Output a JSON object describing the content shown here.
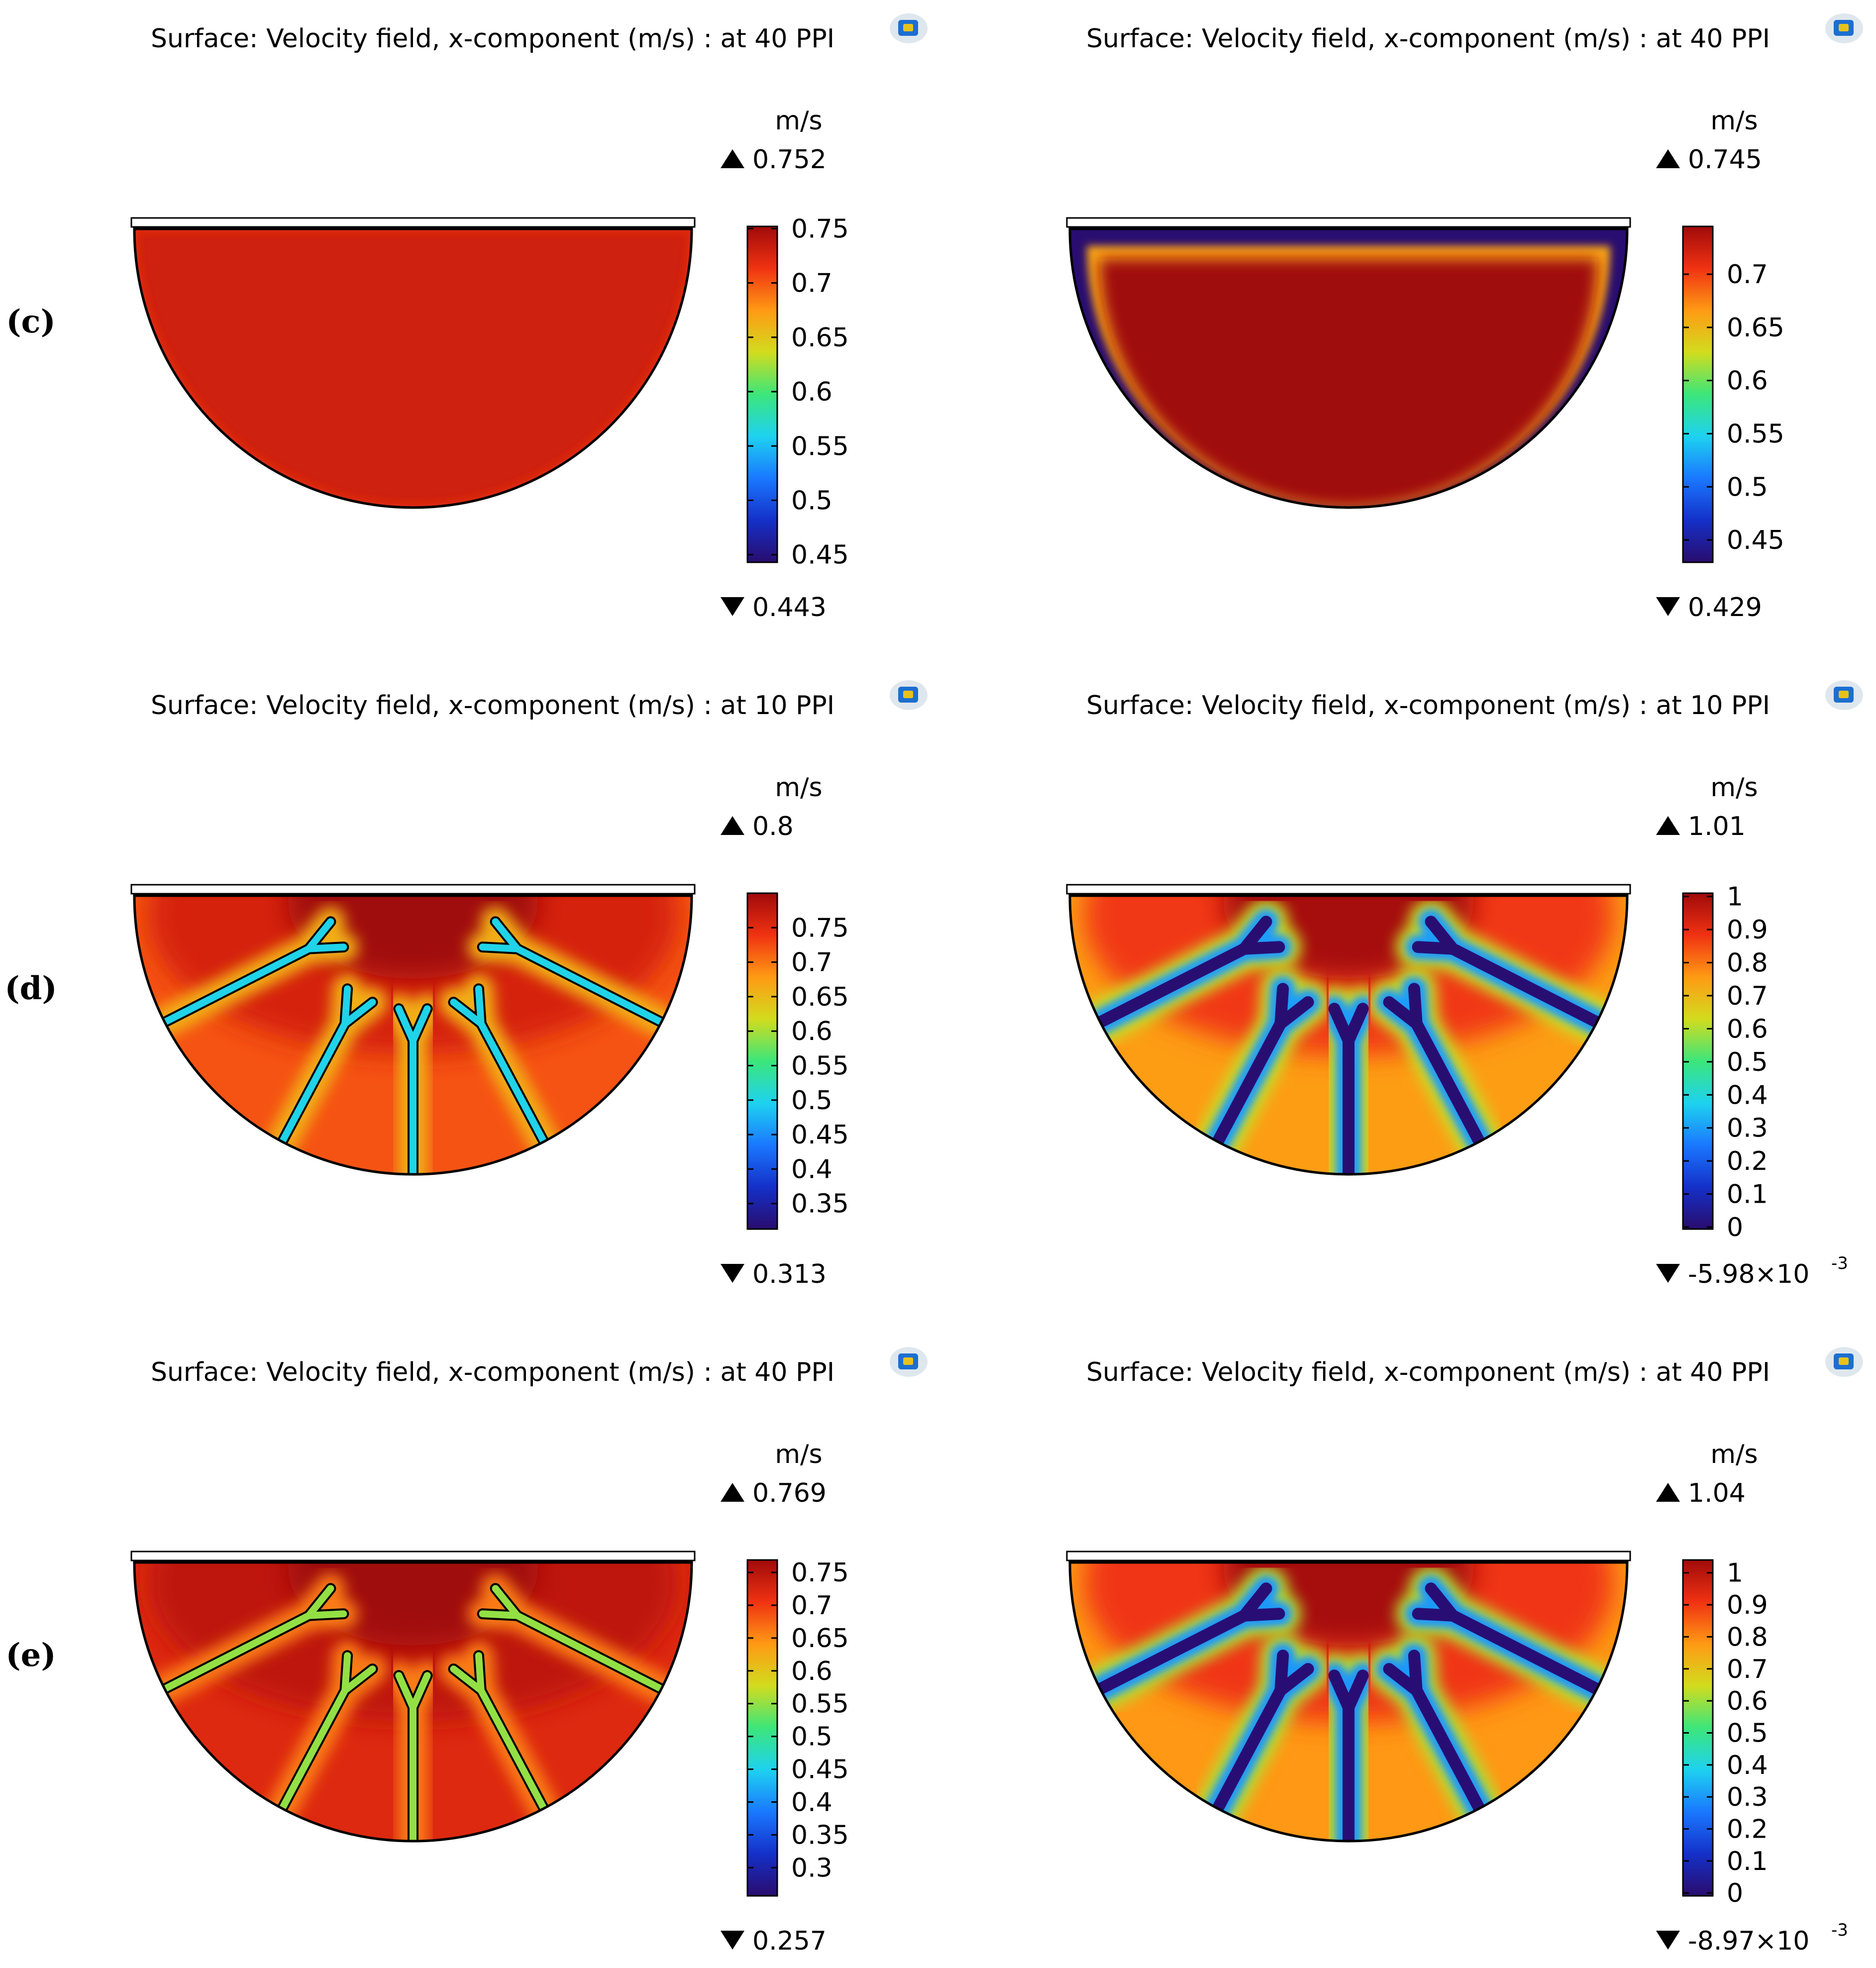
{
  "rows": [
    {
      "label": "(c)",
      "panels": [
        {
          "title": "Surface: Velocity field, x-component (m/s) : at 40 PPI",
          "unit": "m/s",
          "max_label": "0.752",
          "min_label": "0.443",
          "colorbar": {
            "range": [
              0.443,
              0.752
            ],
            "ticks": [
              "0.45",
              "0.5",
              "0.55",
              "0.6",
              "0.65",
              "0.7",
              "0.75"
            ]
          },
          "field": {
            "style": "uniform",
            "value": 0.73,
            "boundary": 0.72,
            "vmin": 0.443,
            "vmax": 0.752,
            "channels": false
          }
        },
        {
          "title": "Surface: Velocity field, x-component (m/s) : at 40 PPI",
          "unit": "m/s",
          "max_label": "0.745",
          "min_label": "0.429",
          "colorbar": {
            "range": [
              0.429,
              0.745
            ],
            "ticks": [
              "0.45",
              "0.5",
              "0.55",
              "0.6",
              "0.65",
              "0.7"
            ]
          },
          "field": {
            "style": "boundary-layer",
            "value": 0.745,
            "boundary": 0.43,
            "vmin": 0.429,
            "vmax": 0.745,
            "channels": false
          }
        }
      ]
    },
    {
      "label": "(d)",
      "panels": [
        {
          "title": "Surface: Velocity field, x-component (m/s) : at 10 PPI",
          "unit": "m/s",
          "max_label": "0.8",
          "min_label": "0.313",
          "colorbar": {
            "range": [
              0.313,
              0.8
            ],
            "ticks": [
              "0.35",
              "0.4",
              "0.45",
              "0.5",
              "0.55",
              "0.6",
              "0.65",
              "0.7",
              "0.75"
            ]
          },
          "field": {
            "style": "channels-thin",
            "value": 0.8,
            "outer": 0.72,
            "channel": 0.5,
            "vmin": 0.313,
            "vmax": 0.8,
            "channels": true
          }
        },
        {
          "title": "Surface: Velocity field, x-component (m/s) : at 10 PPI",
          "unit": "m/s",
          "max_label": "1.01",
          "min_label": "-5.98×10",
          "min_exp": "-3",
          "colorbar": {
            "range": [
              -0.00598,
              1.01
            ],
            "ticks": [
              "0",
              "0.1",
              "0.2",
              "0.3",
              "0.4",
              "0.5",
              "0.6",
              "0.7",
              "0.8",
              "0.9",
              "1"
            ]
          },
          "field": {
            "style": "channels-wide",
            "value": 1.0,
            "outer": 0.75,
            "channel": 0.0,
            "vmin": -0.00598,
            "vmax": 1.01,
            "channels": true
          }
        }
      ]
    },
    {
      "label": "(e)",
      "panels": [
        {
          "title": "Surface: Velocity field, x-component (m/s) : at 40 PPI",
          "unit": "m/s",
          "max_label": "0.769",
          "min_label": "0.257",
          "colorbar": {
            "range": [
              0.257,
              0.769
            ],
            "ticks": [
              "0.3",
              "0.35",
              "0.4",
              "0.45",
              "0.5",
              "0.55",
              "0.6",
              "0.65",
              "0.7",
              "0.75"
            ]
          },
          "field": {
            "style": "channels-thin",
            "value": 0.77,
            "outer": 0.72,
            "channel": 0.55,
            "vmin": 0.257,
            "vmax": 0.769,
            "channels": true
          }
        },
        {
          "title": "Surface: Velocity field, x-component (m/s) : at 40 PPI",
          "unit": "m/s",
          "max_label": "1.04",
          "min_label": "-8.97×10",
          "min_exp": "-3",
          "colorbar": {
            "range": [
              -0.00897,
              1.04
            ],
            "ticks": [
              "0",
              "0.1",
              "0.2",
              "0.3",
              "0.4",
              "0.5",
              "0.6",
              "0.7",
              "0.8",
              "0.9",
              "1"
            ]
          },
          "field": {
            "style": "channels-wide",
            "value": 1.03,
            "outer": 0.78,
            "channel": 0.0,
            "vmin": -0.00897,
            "vmax": 1.04,
            "channels": true
          }
        }
      ]
    }
  ],
  "chart_data": [
    {
      "type": "heatmap",
      "title": "Surface: Velocity field, x-component (m/s) : at 40 PPI",
      "row": "(c)",
      "unit": "m/s",
      "max": 0.752,
      "min": 0.443,
      "colorbar_ticks": [
        0.45,
        0.5,
        0.55,
        0.6,
        0.65,
        0.7,
        0.75
      ]
    },
    {
      "type": "heatmap",
      "title": "Surface: Velocity field, x-component (m/s) : at 40 PPI",
      "row": "(c)",
      "unit": "m/s",
      "max": 0.745,
      "min": 0.429,
      "colorbar_ticks": [
        0.45,
        0.5,
        0.55,
        0.6,
        0.65,
        0.7
      ]
    },
    {
      "type": "heatmap",
      "title": "Surface: Velocity field, x-component (m/s) : at 10 PPI",
      "row": "(d)",
      "unit": "m/s",
      "max": 0.8,
      "min": 0.313,
      "colorbar_ticks": [
        0.35,
        0.4,
        0.45,
        0.5,
        0.55,
        0.6,
        0.65,
        0.7,
        0.75
      ]
    },
    {
      "type": "heatmap",
      "title": "Surface: Velocity field, x-component (m/s) : at 10 PPI",
      "row": "(d)",
      "unit": "m/s",
      "max": 1.01,
      "min": -0.00598,
      "colorbar_ticks": [
        0,
        0.1,
        0.2,
        0.3,
        0.4,
        0.5,
        0.6,
        0.7,
        0.8,
        0.9,
        1
      ]
    },
    {
      "type": "heatmap",
      "title": "Surface: Velocity field, x-component (m/s) : at 40 PPI",
      "row": "(e)",
      "unit": "m/s",
      "max": 0.769,
      "min": 0.257,
      "colorbar_ticks": [
        0.3,
        0.35,
        0.4,
        0.45,
        0.5,
        0.55,
        0.6,
        0.65,
        0.7,
        0.75
      ]
    },
    {
      "type": "heatmap",
      "title": "Surface: Velocity field, x-component (m/s) : at 40 PPI",
      "row": "(e)",
      "unit": "m/s",
      "max": 1.04,
      "min": -0.00897,
      "colorbar_ticks": [
        0,
        0.1,
        0.2,
        0.3,
        0.4,
        0.5,
        0.6,
        0.7,
        0.8,
        0.9,
        1
      ]
    }
  ],
  "colormap": [
    "#2a0c6e",
    "#1430c8",
    "#1a78ff",
    "#1ed2f0",
    "#3ce67a",
    "#d2dc1e",
    "#ff9a14",
    "#f03212",
    "#a00a0a"
  ]
}
